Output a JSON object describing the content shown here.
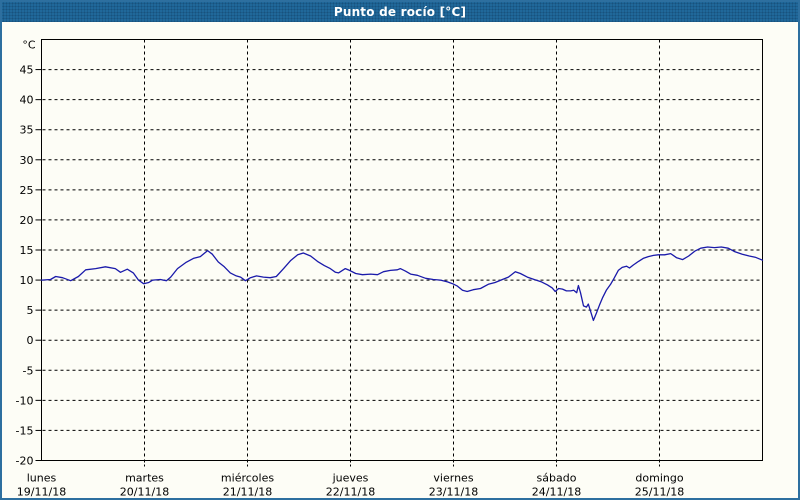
{
  "window": {
    "title": "Punto de rocío [°C]"
  },
  "colors": {
    "window_border": "#2d6f9f",
    "titlebar_bg": "#20689a",
    "titlebar_text": "#ffffff",
    "plot_bg": "#fdfdf6",
    "grid": "#000000",
    "series_line": "#1a1aaa",
    "axis_text": "#000000"
  },
  "chart_data": {
    "type": "line",
    "title": "Punto de rocío [°C]",
    "ylabel": "°C",
    "xlabel": "",
    "ylim": [
      -20,
      50
    ],
    "ytick_step": 5,
    "yticks": [
      45,
      40,
      35,
      30,
      25,
      20,
      15,
      10,
      5,
      0,
      -5,
      -10,
      -15,
      -20
    ],
    "x_unit": "hours",
    "xlim": [
      0,
      168
    ],
    "grid": "dashed",
    "legend_position": "none",
    "days": [
      {
        "name": "lunes",
        "date": "19/11/18"
      },
      {
        "name": "martes",
        "date": "20/11/18"
      },
      {
        "name": "miércoles",
        "date": "21/11/18"
      },
      {
        "name": "jueves",
        "date": "22/11/18"
      },
      {
        "name": "viernes",
        "date": "23/11/18"
      },
      {
        "name": "sábado",
        "date": "24/11/18"
      },
      {
        "name": "domingo",
        "date": "25/11/18"
      }
    ],
    "series": [
      {
        "name": "Punto de rocío",
        "color": "#1a1aaa",
        "points": [
          [
            0,
            10.0
          ],
          [
            2.1,
            10.1
          ],
          [
            3.3,
            10.6
          ],
          [
            4.9,
            10.4
          ],
          [
            6.8,
            9.9
          ],
          [
            8.6,
            10.6
          ],
          [
            10.3,
            11.7
          ],
          [
            12.6,
            11.9
          ],
          [
            14.9,
            12.2
          ],
          [
            17.2,
            11.9
          ],
          [
            18.4,
            11.3
          ],
          [
            20,
            11.8
          ],
          [
            21.4,
            11.2
          ],
          [
            22.6,
            10.0
          ],
          [
            23.8,
            9.4
          ],
          [
            25,
            9.6
          ],
          [
            25.9,
            10.0
          ],
          [
            27.7,
            10.1
          ],
          [
            29.1,
            9.9
          ],
          [
            30.1,
            10.5
          ],
          [
            31.7,
            11.9
          ],
          [
            33.6,
            12.9
          ],
          [
            35.4,
            13.6
          ],
          [
            37,
            13.9
          ],
          [
            38.7,
            14.9
          ],
          [
            39.8,
            14.3
          ],
          [
            41.2,
            13.0
          ],
          [
            42.6,
            12.2
          ],
          [
            44,
            11.2
          ],
          [
            45.4,
            10.7
          ],
          [
            46.4,
            10.5
          ],
          [
            47.5,
            9.9
          ],
          [
            48.7,
            10.4
          ],
          [
            50.1,
            10.7
          ],
          [
            51.7,
            10.5
          ],
          [
            53.3,
            10.4
          ],
          [
            54.7,
            10.6
          ],
          [
            56.4,
            11.9
          ],
          [
            58,
            13.2
          ],
          [
            59.7,
            14.2
          ],
          [
            61,
            14.5
          ],
          [
            62.7,
            14.0
          ],
          [
            64.3,
            13.1
          ],
          [
            65.9,
            12.4
          ],
          [
            67.3,
            11.9
          ],
          [
            68.5,
            11.3
          ],
          [
            69.2,
            11.2
          ],
          [
            70.8,
            11.9
          ],
          [
            71.8,
            11.6
          ],
          [
            73.2,
            11.1
          ],
          [
            74.8,
            10.9
          ],
          [
            76.7,
            11.0
          ],
          [
            78.3,
            10.9
          ],
          [
            79.7,
            11.4
          ],
          [
            81.3,
            11.6
          ],
          [
            82.9,
            11.7
          ],
          [
            83.6,
            11.9
          ],
          [
            84.8,
            11.5
          ],
          [
            86,
            11.0
          ],
          [
            87.6,
            10.8
          ],
          [
            89.5,
            10.3
          ],
          [
            91.3,
            10.1
          ],
          [
            93,
            10.0
          ],
          [
            94.6,
            9.7
          ],
          [
            95.8,
            9.4
          ],
          [
            96.9,
            9.0
          ],
          [
            98.1,
            8.3
          ],
          [
            99.2,
            8.1
          ],
          [
            100.6,
            8.4
          ],
          [
            102.3,
            8.6
          ],
          [
            104.1,
            9.3
          ],
          [
            105.7,
            9.6
          ],
          [
            107.4,
            10.1
          ],
          [
            108.8,
            10.5
          ],
          [
            110.4,
            11.4
          ],
          [
            111.6,
            11.1
          ],
          [
            113.2,
            10.5
          ],
          [
            114.8,
            10.1
          ],
          [
            116.5,
            9.7
          ],
          [
            117.9,
            9.2
          ],
          [
            119,
            8.7
          ],
          [
            119.7,
            8.1
          ],
          [
            120.5,
            8.6
          ],
          [
            121.4,
            8.5
          ],
          [
            122.3,
            8.2
          ],
          [
            123.3,
            8.2
          ],
          [
            124,
            8.3
          ],
          [
            124.7,
            7.9
          ],
          [
            125.1,
            9.1
          ],
          [
            125.6,
            7.9
          ],
          [
            126.3,
            5.7
          ],
          [
            127,
            5.5
          ],
          [
            127.4,
            6.0
          ],
          [
            127.9,
            4.9
          ],
          [
            128.6,
            3.3
          ],
          [
            129.3,
            4.5
          ],
          [
            130,
            5.8
          ],
          [
            130.7,
            7.0
          ],
          [
            131.6,
            8.3
          ],
          [
            132.6,
            9.3
          ],
          [
            133.5,
            10.4
          ],
          [
            134.4,
            11.6
          ],
          [
            135.3,
            12.1
          ],
          [
            136.3,
            12.3
          ],
          [
            137,
            12.0
          ],
          [
            137.9,
            12.5
          ],
          [
            139.1,
            13.1
          ],
          [
            140.2,
            13.6
          ],
          [
            141.4,
            13.9
          ],
          [
            142.6,
            14.1
          ],
          [
            143.7,
            14.2
          ],
          [
            145.2,
            14.2
          ],
          [
            146.6,
            14.4
          ],
          [
            148,
            13.7
          ],
          [
            149.4,
            13.4
          ],
          [
            150.8,
            14.0
          ],
          [
            152.2,
            14.8
          ],
          [
            153.6,
            15.3
          ],
          [
            155.2,
            15.5
          ],
          [
            156.8,
            15.4
          ],
          [
            158.4,
            15.5
          ],
          [
            160,
            15.3
          ],
          [
            161.6,
            14.7
          ],
          [
            163.3,
            14.3
          ],
          [
            164.9,
            14.0
          ],
          [
            166.3,
            13.8
          ],
          [
            168,
            13.3
          ]
        ]
      }
    ]
  }
}
